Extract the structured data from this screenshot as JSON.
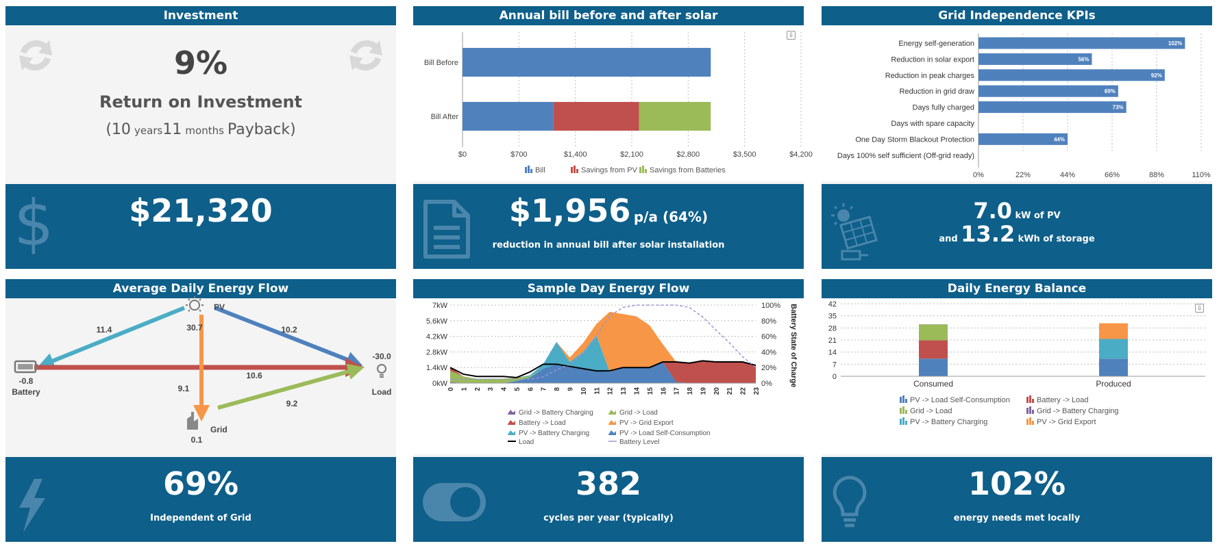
{
  "investment": {
    "title": "Investment",
    "roi_value": "9%",
    "roi_label": "Return on Investment",
    "payback_open": "(",
    "payback_years": "10",
    "years_unit": "years",
    "payback_months": "11",
    "months_unit": "months",
    "payback_word": "Payback",
    "payback_close": ")",
    "total_value": "$21,320"
  },
  "annual_bill": {
    "title": "Annual bill before and after solar",
    "footer_value": "$1,956",
    "footer_suffix": "p/a (64%)",
    "footer_caption": "reduction in annual bill after solar installation"
  },
  "grid_kpis": {
    "title": "Grid Independence KPIs",
    "pv_value": "7.0",
    "pv_unit": "kW of PV",
    "and_word": "and",
    "storage_value": "13.2",
    "storage_unit": "kWh of storage"
  },
  "energy_flow": {
    "title": "Average Daily Energy Flow",
    "pv_label": "PV",
    "pv_value": "30.7",
    "battery_label": "Battery",
    "battery_value": "-0.8",
    "load_label": "Load",
    "load_value": "-30.0",
    "grid_label": "Grid",
    "grid_value": "0.1",
    "flow_pv_battery": "11.4",
    "flow_pv_load": "10.2",
    "flow_battery_load": "10.6",
    "flow_pv_grid": "9.1",
    "flow_grid_load": "9.2",
    "footer_value": "69%",
    "footer_caption": "Independent of Grid"
  },
  "sample_day": {
    "title": "Sample Day Energy Flow",
    "footer_value": "382",
    "footer_caption": "cycles per year (typically)"
  },
  "daily_balance": {
    "title": "Daily Energy Balance",
    "footer_value": "102%",
    "footer_caption": "energy needs met locally"
  },
  "colors": {
    "header": "#0e5f8a",
    "blue": "#4f81bd",
    "red": "#c0504d",
    "green": "#9bbb59",
    "cyan": "#4bacc6",
    "orange": "#f79646",
    "purple": "#8064a2"
  },
  "icons": [
    "refresh-icon",
    "dollar-icon",
    "document-icon",
    "solar-panel-icon",
    "lightning-icon",
    "toggle-icon",
    "lightbulb-icon",
    "sun-icon",
    "battery-icon",
    "factory-icon",
    "download-icon"
  ],
  "chart_data": [
    {
      "type": "bar",
      "orientation": "horizontal",
      "stacked": true,
      "categories": [
        "Bill Before",
        "Bill After"
      ],
      "series": [
        {
          "name": "Bill",
          "color": "#4f81bd",
          "values": [
            3080,
            1124
          ]
        },
        {
          "name": "Savings from PV",
          "color": "#c0504d",
          "values": [
            0,
            1066
          ]
        },
        {
          "name": "Savings from Batteries",
          "color": "#9bbb59",
          "values": [
            0,
            890
          ]
        }
      ],
      "xlim": [
        0,
        4200
      ],
      "xticks": [
        "$0",
        "$700",
        "$1,400",
        "$2,100",
        "$2,800",
        "$3,500",
        "$4,200"
      ],
      "legend": "bottom",
      "grid": true
    },
    {
      "type": "bar",
      "orientation": "horizontal",
      "categories": [
        "Energy self-generation",
        "Reduction in solar export",
        "Reduction in peak charges",
        "Reduction in grid draw",
        "Days fully charged",
        "Days with spare capacity",
        "One Day Storm Blackout Protection",
        "Days 100% self sufficient (Off-grid ready)"
      ],
      "values": [
        102,
        56,
        92,
        69,
        73,
        0,
        44,
        0
      ],
      "data_labels": [
        "102%",
        "56%",
        "92%",
        "69%",
        "73%",
        "",
        "44%",
        ""
      ],
      "xlim": [
        0,
        110
      ],
      "xticks": [
        "0%",
        "22%",
        "44%",
        "66%",
        "88%",
        "110%"
      ],
      "grid": true
    },
    {
      "type": "area",
      "x": [
        0,
        1,
        2,
        3,
        4,
        5,
        6,
        7,
        8,
        9,
        10,
        11,
        12,
        13,
        14,
        15,
        16,
        17,
        18,
        19,
        20,
        21,
        22,
        23
      ],
      "xticks": [
        "0",
        "1",
        "2",
        "3",
        "4",
        "5",
        "6",
        "7",
        "8",
        "9",
        "10",
        "11",
        "12",
        "13",
        "14",
        "15",
        "16",
        "17",
        "18",
        "19",
        "20",
        "21",
        "22",
        "23"
      ],
      "yticks_left": [
        "0kW",
        "1.4kW",
        "2.8kW",
        "4.2kW",
        "5.6kW",
        "7kW"
      ],
      "yticks_right": [
        "0%",
        "20%",
        "40%",
        "60%",
        "80%",
        "100%"
      ],
      "ylabel_right": "Battery State of Charge",
      "ylim": [
        0,
        7
      ],
      "series": [
        {
          "name": "Grid -> Battery Charging",
          "color": "#8064a2",
          "values": [
            0.1,
            0,
            0,
            0,
            0,
            0,
            0,
            0,
            0,
            0,
            0,
            0,
            0,
            0,
            0,
            0,
            0,
            0,
            0,
            0,
            0,
            0,
            0,
            0
          ]
        },
        {
          "name": "Grid -> Load",
          "color": "#9bbb59",
          "values": [
            1.0,
            0.6,
            0.4,
            0.4,
            0.4,
            0.3,
            0.1,
            0,
            0,
            0,
            0,
            0,
            0,
            0,
            0,
            0,
            0,
            0,
            0,
            0,
            0,
            0,
            0,
            0
          ]
        },
        {
          "name": "Battery -> Load",
          "color": "#c0504d",
          "values": [
            0.3,
            0,
            0,
            0,
            0,
            0,
            0,
            0,
            0,
            0,
            0,
            0,
            0,
            0,
            0,
            0,
            0,
            1.8,
            1.8,
            2.0,
            1.9,
            1.9,
            1.9,
            1.6
          ]
        },
        {
          "name": "PV -> Battery Charging",
          "color": "#4bacc6",
          "values": [
            0,
            0,
            0,
            0,
            0,
            0,
            0.1,
            0.4,
            2.0,
            0.4,
            1.5,
            3.2,
            0,
            0,
            0,
            0,
            0,
            0,
            0,
            0,
            0,
            0,
            0,
            0
          ]
        },
        {
          "name": "PV -> Grid Export",
          "color": "#f79646",
          "values": [
            0,
            0,
            0,
            0,
            0,
            0,
            0,
            0,
            0,
            0.4,
            0.8,
            1.0,
            5.4,
            4.8,
            4.6,
            3.8,
            1.6,
            0,
            0,
            0,
            0,
            0,
            0,
            0
          ]
        },
        {
          "name": "PV -> Load Self-Consumption",
          "color": "#4f81bd",
          "values": [
            0,
            0,
            0,
            0,
            0,
            0.2,
            0.5,
            1.3,
            1.7,
            1.5,
            1.3,
            1.1,
            1.0,
            1.4,
            1.4,
            1.4,
            1.9,
            0.1,
            0,
            0,
            0,
            0,
            0,
            0
          ]
        },
        {
          "name": "Load",
          "color": "#000000",
          "values": [
            1.4,
            0.8,
            0.6,
            0.6,
            0.6,
            0.5,
            1.0,
            1.7,
            1.7,
            1.5,
            1.3,
            1.1,
            1.1,
            1.4,
            1.4,
            1.4,
            1.9,
            1.9,
            1.8,
            2.0,
            1.9,
            1.9,
            1.9,
            1.6
          ]
        },
        {
          "name": "Battery Level",
          "color": "#9a95d6",
          "values": [
            5,
            5,
            5,
            5,
            5,
            5,
            5,
            8,
            17,
            24,
            38,
            60,
            86,
            97,
            100,
            100,
            100,
            100,
            97,
            85,
            68,
            52,
            34,
            20
          ]
        }
      ],
      "legend": "bottom"
    },
    {
      "type": "bar",
      "stacked": true,
      "categories": [
        "Consumed",
        "Produced"
      ],
      "ylim": [
        0,
        42
      ],
      "yticks": [
        "0",
        "7",
        "14",
        "21",
        "28",
        "35",
        "42"
      ],
      "series": [
        {
          "name": "PV -> Load Self-Consumption",
          "color": "#4f81bd",
          "values": [
            10.2,
            10.2
          ]
        },
        {
          "name": "Battery -> Load",
          "color": "#c0504d",
          "values": [
            10.6,
            0
          ]
        },
        {
          "name": "Grid -> Load",
          "color": "#9bbb59",
          "values": [
            9.2,
            0
          ]
        },
        {
          "name": "Grid -> Battery Charging",
          "color": "#8064a2",
          "values": [
            0.1,
            0
          ]
        },
        {
          "name": "PV -> Battery Charging",
          "color": "#4bacc6",
          "values": [
            0,
            11.4
          ]
        },
        {
          "name": "PV -> Grid Export",
          "color": "#f79646",
          "values": [
            0,
            9.1
          ]
        }
      ],
      "legend": "bottom"
    }
  ]
}
